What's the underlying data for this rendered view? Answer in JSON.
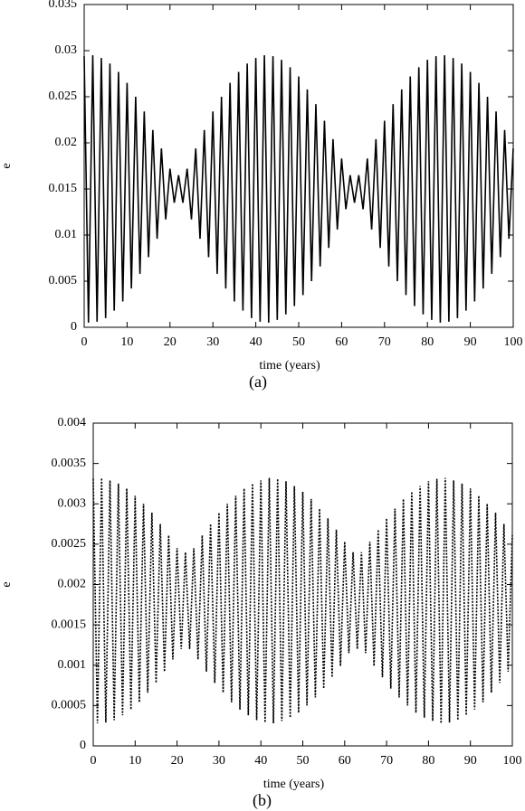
{
  "chart_data": [
    {
      "type": "line",
      "x_label": "time (years)",
      "y_label": "e",
      "caption": "(a)",
      "xlim": [
        0,
        100
      ],
      "xticks": [
        0,
        10,
        20,
        30,
        40,
        50,
        60,
        70,
        80,
        90,
        100
      ],
      "ylim": [
        0,
        0.035
      ],
      "yticks": [
        0,
        0.005,
        0.01,
        0.015,
        0.02,
        0.025,
        0.03,
        0.035
      ],
      "line_style": "solid",
      "series": [
        {
          "color": "#000000",
          "x": [
            0,
            1,
            2,
            3,
            4,
            5,
            6,
            7,
            8,
            9,
            10,
            11,
            12,
            13,
            14,
            15,
            16,
            17,
            18,
            19,
            20,
            21,
            22,
            23,
            24,
            25,
            26,
            27,
            28,
            29,
            30,
            31,
            32,
            33,
            34,
            35,
            36,
            37,
            38,
            39,
            40,
            41,
            42,
            43,
            44,
            45,
            46,
            47,
            48,
            49,
            50,
            51,
            52,
            53,
            54,
            55,
            56,
            57,
            58,
            59,
            60,
            61,
            62,
            63,
            64,
            65,
            66,
            67,
            68,
            69,
            70,
            71,
            72,
            73,
            74,
            75,
            76,
            77,
            78,
            79,
            80,
            81,
            82,
            83,
            84,
            85,
            86,
            87,
            88,
            89,
            90,
            91,
            92,
            93,
            94,
            95,
            96,
            97,
            98,
            99,
            100
          ],
          "values": [
            0.0294,
            0.0005,
            0.0295,
            0.0006,
            0.0292,
            0.001,
            0.0286,
            0.0018,
            0.0277,
            0.0028,
            0.0265,
            0.0042,
            0.025,
            0.0058,
            0.0234,
            0.0076,
            0.0214,
            0.0096,
            0.0194,
            0.0117,
            0.0172,
            0.0135,
            0.0165,
            0.0135,
            0.0172,
            0.0117,
            0.0194,
            0.0096,
            0.0214,
            0.0076,
            0.0234,
            0.0058,
            0.025,
            0.0042,
            0.0265,
            0.0028,
            0.0277,
            0.0018,
            0.0286,
            0.001,
            0.0292,
            0.0006,
            0.0295,
            0.0005,
            0.0294,
            0.0008,
            0.029,
            0.0014,
            0.0282,
            0.0023,
            0.0272,
            0.0035,
            0.0258,
            0.005,
            0.0242,
            0.0066,
            0.0224,
            0.0086,
            0.0204,
            0.0106,
            0.0183,
            0.0128,
            0.0165,
            0.0135,
            0.0165,
            0.0128,
            0.0183,
            0.0106,
            0.0204,
            0.0086,
            0.0224,
            0.0066,
            0.0242,
            0.005,
            0.0258,
            0.0035,
            0.0272,
            0.0023,
            0.0282,
            0.0014,
            0.029,
            0.0008,
            0.0294,
            0.0005,
            0.0295,
            0.0006,
            0.0292,
            0.001,
            0.0286,
            0.0018,
            0.0277,
            0.0028,
            0.0265,
            0.0042,
            0.025,
            0.0058,
            0.0234,
            0.0076,
            0.0214,
            0.0096,
            0.0194
          ]
        }
      ]
    },
    {
      "type": "line",
      "x_label": "time (years)",
      "y_label": "e",
      "caption": "(b)",
      "xlim": [
        0,
        100
      ],
      "xticks": [
        0,
        10,
        20,
        30,
        40,
        50,
        60,
        70,
        80,
        90,
        100
      ],
      "ylim": [
        0,
        0.004
      ],
      "yticks": [
        0,
        0.0005,
        0.001,
        0.0015,
        0.002,
        0.0025,
        0.003,
        0.0035,
        0.004
      ],
      "line_style": "dotted",
      "series": [
        {
          "color": "#000000",
          "x": [
            0,
            1,
            2,
            3,
            4,
            5,
            6,
            7,
            8,
            9,
            10,
            11,
            12,
            13,
            14,
            15,
            16,
            17,
            18,
            19,
            20,
            21,
            22,
            23,
            24,
            25,
            26,
            27,
            28,
            29,
            30,
            31,
            32,
            33,
            34,
            35,
            36,
            37,
            38,
            39,
            40,
            41,
            42,
            43,
            44,
            45,
            46,
            47,
            48,
            49,
            50,
            51,
            52,
            53,
            54,
            55,
            56,
            57,
            58,
            59,
            60,
            61,
            62,
            63,
            64,
            65,
            66,
            67,
            68,
            69,
            70,
            71,
            72,
            73,
            74,
            75,
            76,
            77,
            78,
            79,
            80,
            81,
            82,
            83,
            84,
            85,
            86,
            87,
            88,
            89,
            90,
            91,
            92,
            93,
            94,
            95,
            96,
            97,
            98,
            99,
            100
          ],
          "values": [
            0.00331,
            0.00028,
            0.00332,
            0.00029,
            0.00329,
            0.00032,
            0.00325,
            0.00038,
            0.00319,
            0.00045,
            0.0031,
            0.00054,
            0.003,
            0.00066,
            0.00289,
            0.00078,
            0.00275,
            0.00092,
            0.00261,
            0.00107,
            0.00245,
            0.0012,
            0.0024,
            0.0012,
            0.00245,
            0.00107,
            0.00261,
            0.00092,
            0.00275,
            0.00078,
            0.00289,
            0.00066,
            0.003,
            0.00054,
            0.0031,
            0.00045,
            0.00319,
            0.00038,
            0.00325,
            0.00032,
            0.00329,
            0.00029,
            0.00332,
            0.00028,
            0.00331,
            0.00031,
            0.00328,
            0.00035,
            0.00322,
            0.00041,
            0.00315,
            0.0005,
            0.00306,
            0.0006,
            0.00294,
            0.00071,
            0.00282,
            0.00085,
            0.00268,
            0.00099,
            0.00253,
            0.00115,
            0.0024,
            0.0012,
            0.0024,
            0.00115,
            0.00253,
            0.00099,
            0.00268,
            0.00085,
            0.00282,
            0.00071,
            0.00294,
            0.0006,
            0.00306,
            0.0005,
            0.00315,
            0.00041,
            0.00322,
            0.00035,
            0.00328,
            0.00031,
            0.00331,
            0.00028,
            0.00332,
            0.00029,
            0.00329,
            0.00032,
            0.00325,
            0.00038,
            0.00319,
            0.00045,
            0.0031,
            0.00054,
            0.003,
            0.00066,
            0.00289,
            0.00078,
            0.00275,
            0.00092,
            0.00261
          ]
        }
      ]
    }
  ]
}
